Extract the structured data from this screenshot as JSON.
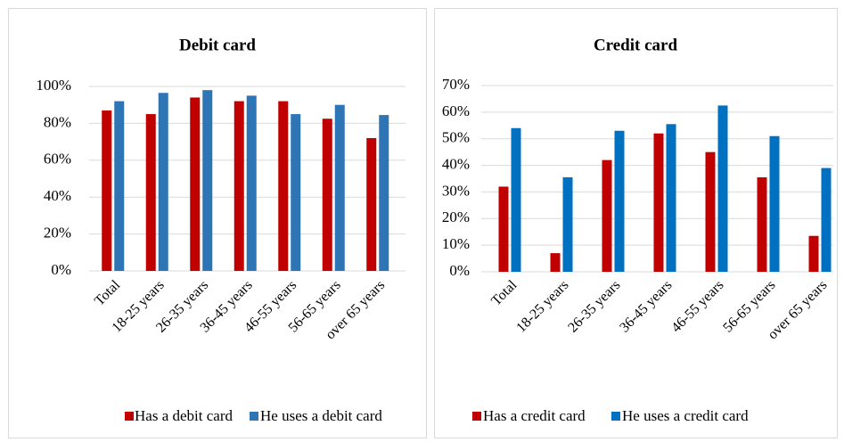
{
  "chart_data": [
    {
      "type": "bar",
      "title": "Debit card",
      "categories": [
        "Total",
        "18-25 years",
        "26-35 years",
        "36-45 years",
        "46-55 years",
        "56-65 years",
        "over 65 years"
      ],
      "series": [
        {
          "name": "Has a debit card",
          "color": "#c00000",
          "values": [
            87,
            85,
            94,
            92,
            92,
            82.5,
            72
          ]
        },
        {
          "name": "He uses a debit card",
          "color": "#2e75b6",
          "values": [
            92,
            96.5,
            98,
            95,
            85,
            90,
            84.5
          ]
        }
      ],
      "ylim": [
        0,
        100
      ],
      "yticks": [
        {
          "value": 0,
          "label": "0%"
        },
        {
          "value": 20,
          "label": "20%"
        },
        {
          "value": 40,
          "label": "40%"
        },
        {
          "value": 60,
          "label": "60%"
        },
        {
          "value": 80,
          "label": "80%"
        },
        {
          "value": 100,
          "label": "100%"
        }
      ],
      "grid": true,
      "legend": "bottom"
    },
    {
      "type": "bar",
      "title": "Credit card",
      "categories": [
        "Total",
        "18-25 years",
        "26-35 years",
        "36-45 years",
        "46-55 years",
        "56-65 years",
        "over 65 years"
      ],
      "series": [
        {
          "name": "Has a credit card",
          "color": "#c00000",
          "values": [
            32,
            7,
            42,
            52,
            45,
            35.5,
            13.5
          ]
        },
        {
          "name": "He uses a credit card",
          "color": "#0070c0",
          "values": [
            54,
            35.5,
            53,
            55.5,
            62.5,
            51,
            39
          ]
        }
      ],
      "ylim": [
        0,
        70
      ],
      "yticks": [
        {
          "value": 0,
          "label": "0%"
        },
        {
          "value": 10,
          "label": "10%"
        },
        {
          "value": 20,
          "label": "20%"
        },
        {
          "value": 30,
          "label": "30%"
        },
        {
          "value": 40,
          "label": "40%"
        },
        {
          "value": 50,
          "label": "50%"
        },
        {
          "value": 60,
          "label": "60%"
        },
        {
          "value": 70,
          "label": "70%"
        }
      ],
      "grid": true,
      "legend": "bottom"
    }
  ]
}
